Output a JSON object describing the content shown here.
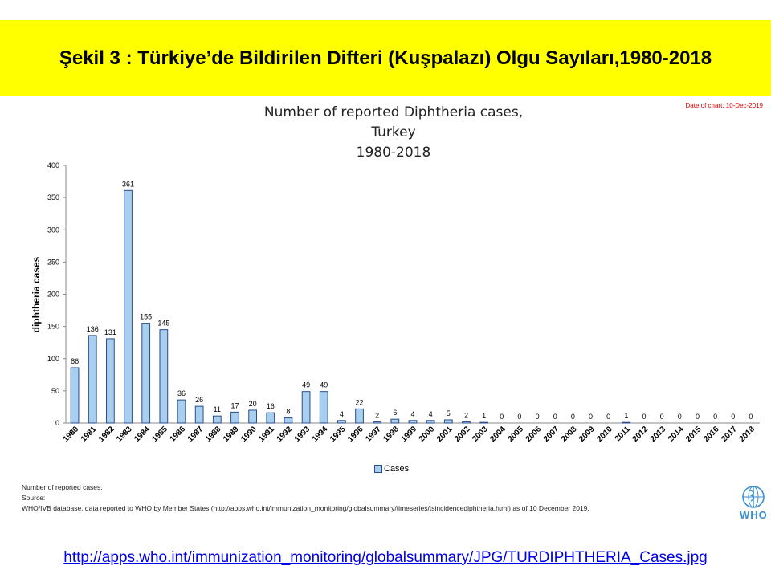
{
  "header": {
    "title": "Şekil 3 : Türkiye’de Bildirilen Difteri (Kuşpalazı) Olgu Sayıları,1980-2018"
  },
  "chart_title_lines": [
    "Number of reported Diphtheria cases,",
    "Turkey",
    "1980-2018"
  ],
  "date_note": "Date of chart: 10-Dec-2019",
  "footer": {
    "source_lines": [
      "Number of reported cases.",
      "Source:",
      "WHO/IVB database, data reported to WHO by Member States (http://apps.who.int/immunization_monitoring/globalsummary/timeseries/tsincidencediphtheria.html) as of 10 December 2019."
    ],
    "logo_text": "WHO",
    "link_text": "http://apps.who.int/immunization_monitoring/globalsummary/JPG/TURDIPHTHERIA_Cases.jpg"
  },
  "colors": {
    "bar_fill": "#a8cff0",
    "bar_stroke": "#2a4d8a",
    "banner": "#ffff00",
    "link": "#0000ee",
    "date_note": "#e00000"
  },
  "chart_data": {
    "type": "bar",
    "title": "Number of reported Diphtheria cases, Turkey 1980-2018",
    "xlabel": "",
    "ylabel": "diphtheria cases",
    "ylim": [
      0,
      400
    ],
    "yticks": [
      0,
      50,
      100,
      150,
      200,
      250,
      300,
      350,
      400
    ],
    "categories": [
      "1980",
      "1981",
      "1982",
      "1983",
      "1984",
      "1985",
      "1986",
      "1987",
      "1988",
      "1989",
      "1990",
      "1991",
      "1992",
      "1993",
      "1994",
      "1995",
      "1996",
      "1997",
      "1998",
      "1999",
      "2000",
      "2001",
      "2002",
      "2003",
      "2004",
      "2005",
      "2006",
      "2007",
      "2008",
      "2009",
      "2010",
      "2011",
      "2012",
      "2013",
      "2014",
      "2015",
      "2016",
      "2017",
      "2018"
    ],
    "series": [
      {
        "name": "Cases",
        "values": [
          86,
          136,
          131,
          361,
          155,
          145,
          36,
          26,
          11,
          17,
          20,
          16,
          8,
          49,
          49,
          4,
          22,
          2,
          6,
          4,
          4,
          5,
          2,
          1,
          0,
          0,
          0,
          0,
          0,
          0,
          0,
          1,
          0,
          0,
          0,
          0,
          0,
          0,
          0
        ]
      }
    ],
    "legend": "bottom-center",
    "grid": false
  }
}
